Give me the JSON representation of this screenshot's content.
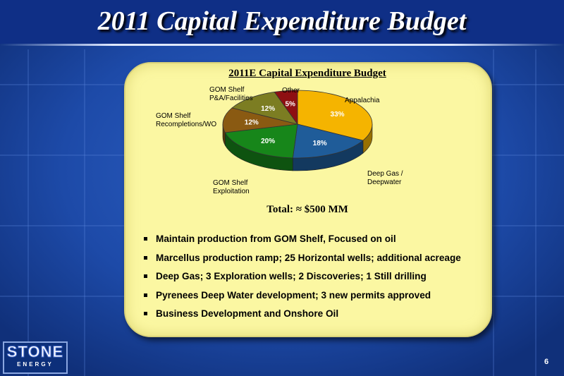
{
  "slide": {
    "title": "2011 Capital Expenditure Budget",
    "page_number": "6"
  },
  "logo": {
    "main": "STONE",
    "sub": "ENERGY"
  },
  "chart_data": {
    "type": "pie",
    "title": "2011E Capital Expenditure Budget",
    "slices": [
      {
        "name": "Appalachia",
        "value": 33,
        "label": "33%",
        "color": "#f5b400"
      },
      {
        "name": "Deep Gas / Deepwater",
        "value": 18,
        "label": "18%",
        "color": "#1f5c99"
      },
      {
        "name": "GOM Shelf Exploitation",
        "value": 20,
        "label": "20%",
        "color": "#17861a"
      },
      {
        "name": "GOM Shelf Recompletions/WO",
        "value": 12,
        "label": "12%",
        "color": "#8a5a12"
      },
      {
        "name": "GOM Shelf P&A/Facilities",
        "value": 12,
        "label": "12%",
        "color": "#7c7d22"
      },
      {
        "name": "Other",
        "value": 5,
        "label": "5%",
        "color": "#8e0f12"
      }
    ],
    "category_labels": {
      "appalachia": "Appalachia",
      "deep_gas_1": "Deep Gas /",
      "deep_gas_2": "Deepwater",
      "exploitation_1": "GOM Shelf",
      "exploitation_2": "Exploitation",
      "recompletions_1": "GOM Shelf",
      "recompletions_2": "Recompletions/WO",
      "pa_1": "GOM Shelf",
      "pa_2": "P&A/Facilities",
      "other": "Other"
    },
    "total": "Total: ≈ $500 MM"
  },
  "bullets": [
    "Maintain production from GOM Shelf,  Focused on oil",
    "Marcellus production ramp; 25 Horizontal wells; additional acreage",
    "Deep Gas; 3 Exploration wells; 2 Discoveries; 1 Still drilling",
    "Pyrenees Deep Water development; 3 new permits approved",
    "Business Development and Onshore Oil"
  ],
  "colors": {
    "background": "#1f4fb0",
    "panel": "#fbf7a2"
  }
}
